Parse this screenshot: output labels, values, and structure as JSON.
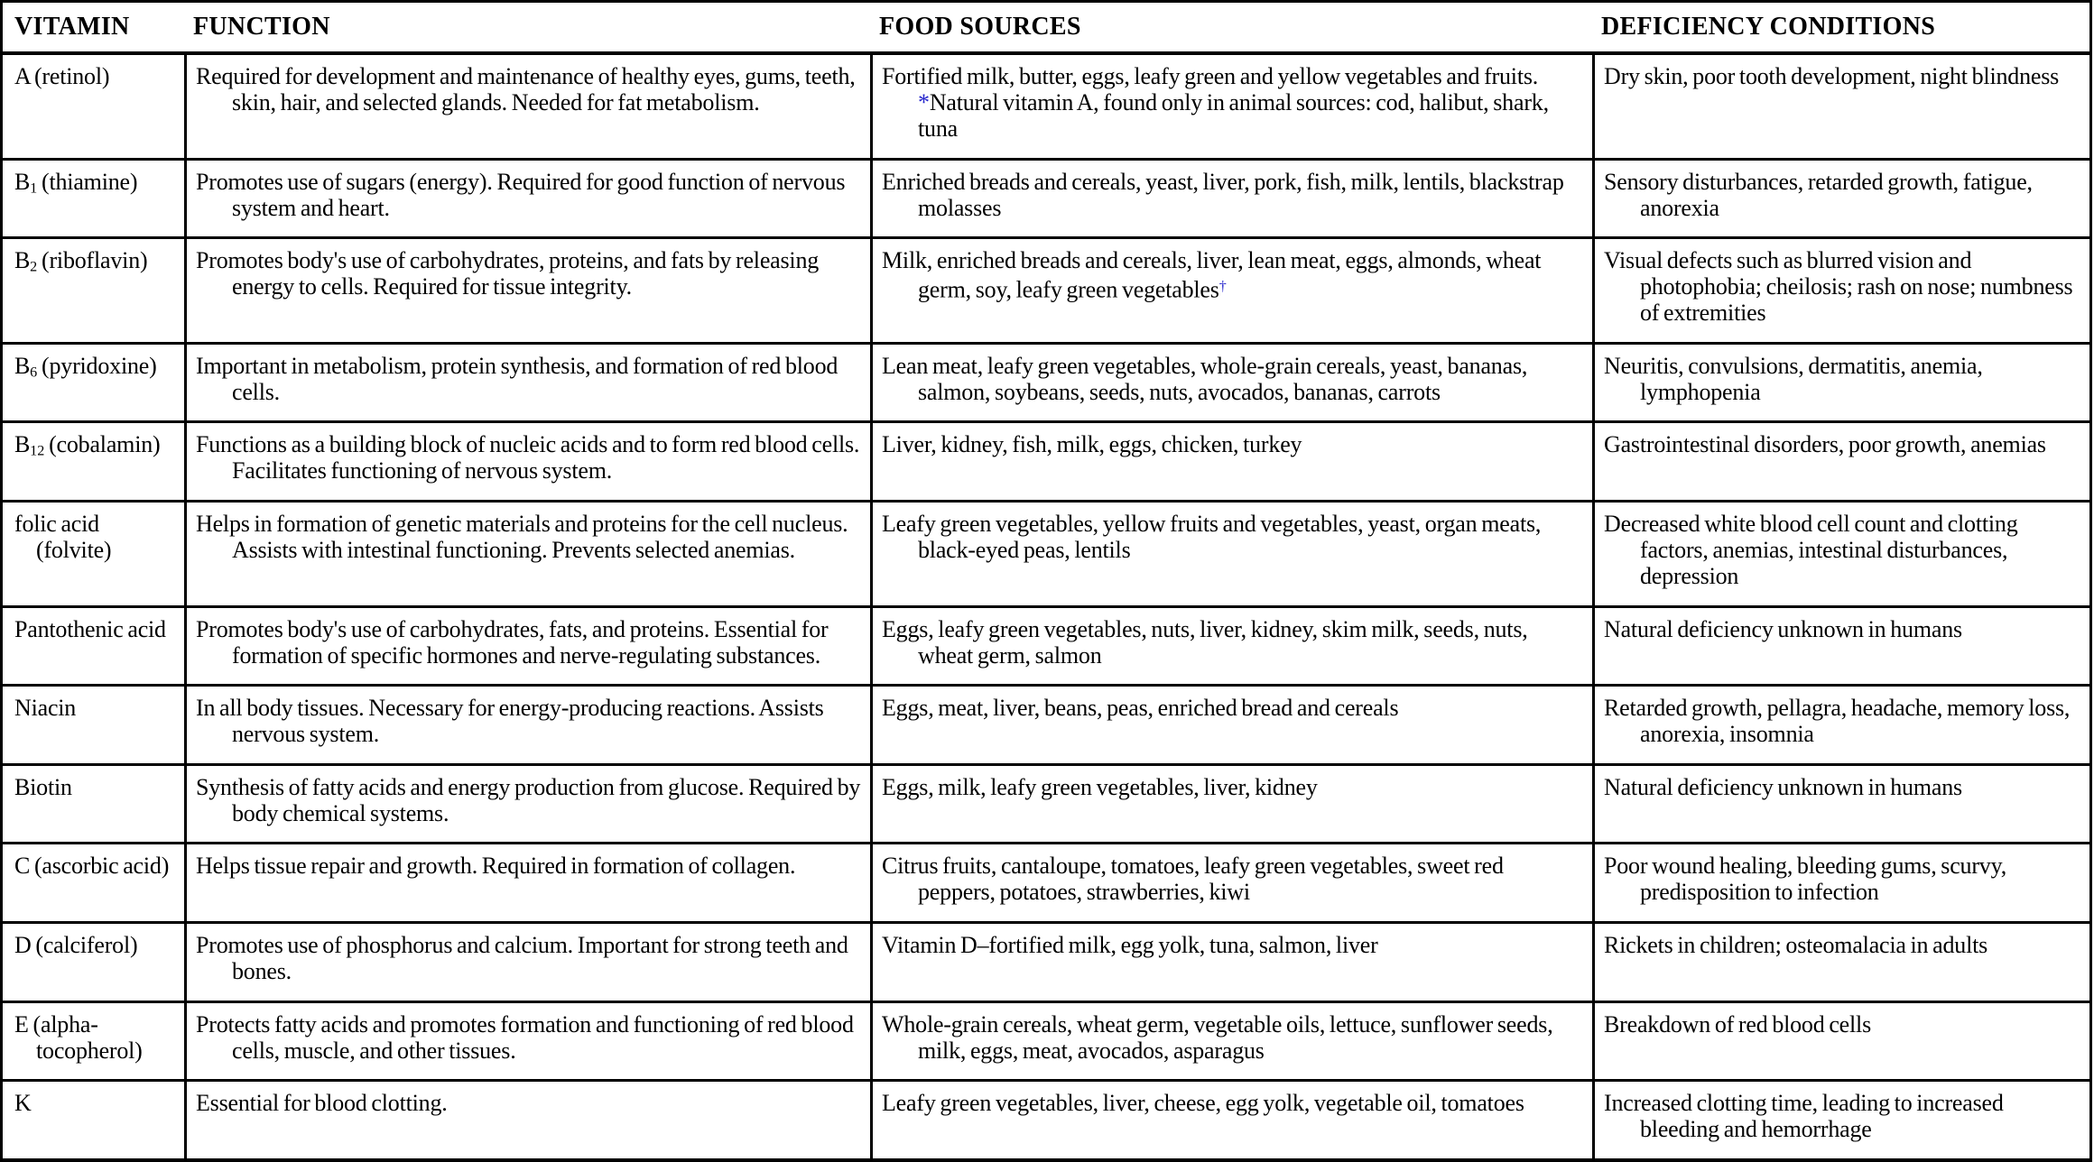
{
  "table": {
    "note_color": "#2424cc",
    "headers": [
      "VITAMIN",
      "FUNCTION",
      "FOOD SOURCES",
      "DEFICIENCY CONDITIONS"
    ],
    "rows": [
      {
        "vitamin": [
          {
            "t": "A (retinol)"
          }
        ],
        "function": "Required for development and maintenance of healthy eyes, gums, teeth, skin, hair, and selected glands. Needed for fat metabolism.",
        "food": [
          {
            "t": "Fortified milk, butter, eggs, leafy green and yellow vegetables and fruits. "
          },
          {
            "t": "*",
            "note": true
          },
          {
            "t": "Natural vitamin A, found only in animal sources: cod, halibut, shark, tuna"
          }
        ],
        "deficiency": "Dry skin, poor tooth development, night blindness"
      },
      {
        "vitamin": [
          {
            "t": "B"
          },
          {
            "t": "1",
            "sub": true
          },
          {
            "t": " (thiamine)"
          }
        ],
        "function": "Promotes use of sugars (energy). Required for good function of nervous system and heart.",
        "food": [
          {
            "t": "Enriched breads and cereals, yeast, liver, pork, fish, milk, lentils, blackstrap molasses"
          }
        ],
        "deficiency": "Sensory disturbances, retarded growth, fatigue, anorexia"
      },
      {
        "vitamin": [
          {
            "t": "B"
          },
          {
            "t": "2",
            "sub": true
          },
          {
            "t": " (riboflavin)"
          }
        ],
        "function": "Promotes body's use of carbohydrates, proteins, and fats by releasing energy to cells. Required for tissue integrity.",
        "food": [
          {
            "t": "Milk, enriched breads and cereals, liver, lean meat, eggs, almonds, wheat germ, soy, leafy green vegetables"
          },
          {
            "t": "†",
            "note": true,
            "sup": true
          }
        ],
        "deficiency": "Visual defects such as blurred vision and photophobia; cheilosis; rash on nose; numbness of extremities"
      },
      {
        "vitamin": [
          {
            "t": "B"
          },
          {
            "t": "6",
            "sub": true
          },
          {
            "t": " (pyridoxine)"
          }
        ],
        "function": "Important in metabolism, protein synthesis, and formation of red blood cells.",
        "food": [
          {
            "t": "Lean meat, leafy green vegetables, whole-grain cereals, yeast, bananas, salmon, soybeans, seeds, nuts, avocados, bananas, carrots"
          }
        ],
        "deficiency": "Neuritis, convulsions, dermatitis, anemia, lymphopenia"
      },
      {
        "vitamin": [
          {
            "t": "B"
          },
          {
            "t": "12",
            "sub": true
          },
          {
            "t": " (cobalamin)"
          }
        ],
        "function": "Functions as a building block of nucleic acids and to form red blood cells. Facilitates functioning of nervous system.",
        "food": [
          {
            "t": "Liver, kidney, fish, milk, eggs, chicken, turkey"
          }
        ],
        "deficiency": "Gastrointestinal disorders, poor growth, anemias"
      },
      {
        "vitamin": [
          {
            "t": "folic acid (folvite)"
          }
        ],
        "function": "Helps in formation of genetic materials and proteins for the cell nucleus. Assists with intestinal functioning. Prevents selected anemias.",
        "food": [
          {
            "t": "Leafy green vegetables, yellow fruits and vegetables, yeast, organ meats, black-eyed peas, lentils"
          }
        ],
        "deficiency": "Decreased white blood cell count and clotting factors, anemias, intestinal disturbances, depression"
      },
      {
        "vitamin": [
          {
            "t": "Pantothenic acid"
          }
        ],
        "function": "Promotes body's use of carbohydrates, fats, and proteins. Essential for formation of specific hormones and nerve-regulating substances.",
        "food": [
          {
            "t": "Eggs, leafy green vegetables, nuts, liver, kidney, skim milk, seeds, nuts, wheat germ, salmon"
          }
        ],
        "deficiency": "Natural deficiency unknown in humans"
      },
      {
        "vitamin": [
          {
            "t": "Niacin"
          }
        ],
        "function": "In all body tissues. Necessary for energy-producing reactions. Assists nervous system.",
        "food": [
          {
            "t": "Eggs, meat, liver, beans, peas, enriched bread and cereals"
          }
        ],
        "deficiency": "Retarded growth, pellagra, headache, memory loss, anorexia, insomnia"
      },
      {
        "vitamin": [
          {
            "t": "Biotin"
          }
        ],
        "function": "Synthesis of fatty acids and energy production from glucose. Required by body chemical systems.",
        "food": [
          {
            "t": "Eggs, milk, leafy green vegetables, liver, kidney"
          }
        ],
        "deficiency": "Natural deficiency unknown in humans"
      },
      {
        "vitamin": [
          {
            "t": "C (ascorbic acid)"
          }
        ],
        "function": "Helps tissue repair and growth. Required in formation of collagen.",
        "food": [
          {
            "t": "Citrus fruits, cantaloupe, tomatoes, leafy green vegetables, sweet red peppers, potatoes, strawberries, kiwi"
          }
        ],
        "deficiency": "Poor wound healing, bleeding gums, scurvy, predisposition to infection"
      },
      {
        "vitamin": [
          {
            "t": "D (calciferol)"
          }
        ],
        "function": "Promotes use of phosphorus and calcium. Important for strong teeth and bones.",
        "food": [
          {
            "t": "Vitamin D–fortified milk, egg yolk, tuna, salmon, liver"
          }
        ],
        "deficiency": "Rickets in children; osteomalacia in adults"
      },
      {
        "vitamin": [
          {
            "t": "E (alpha-tocopherol)"
          }
        ],
        "function": "Protects fatty acids and promotes formation and functioning of red blood cells, muscle, and other tissues.",
        "food": [
          {
            "t": "Whole-grain cereals, wheat germ, vegetable oils, lettuce, sunflower seeds, milk, eggs, meat, avocados, asparagus"
          }
        ],
        "deficiency": "Breakdown of red blood cells"
      },
      {
        "vitamin": [
          {
            "t": "K"
          }
        ],
        "function": "Essential for blood clotting.",
        "food": [
          {
            "t": "Leafy green vegetables, liver, cheese, egg yolk, vegetable oil, tomatoes"
          }
        ],
        "deficiency": "Increased clotting time, leading to increased bleeding and hemorrhage"
      }
    ]
  }
}
